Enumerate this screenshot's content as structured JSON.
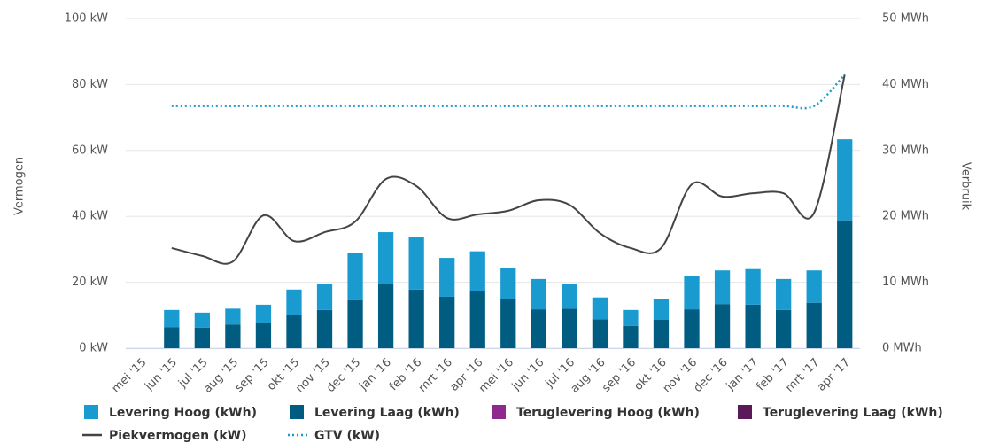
{
  "chart_data": {
    "type": "combo",
    "categories": [
      "mei '15",
      "jun '15",
      "jul '15",
      "aug '15",
      "sep '15",
      "okt '15",
      "nov '15",
      "dec '15",
      "jan '16",
      "feb '16",
      "mrt '16",
      "apr '16",
      "mei '16",
      "jun '16",
      "jul '16",
      "aug '16",
      "sep '16",
      "okt '16",
      "nov '16",
      "dec '16",
      "jan '17",
      "feb '17",
      "mrt '17",
      "apr '17"
    ],
    "ylabel": "Vermogen",
    "y2label": "Verbruik",
    "ylim": [
      0,
      100
    ],
    "yticks": [
      {
        "value": 0,
        "label": "0 kW"
      },
      {
        "value": 20,
        "label": "20 kW"
      },
      {
        "value": 40,
        "label": "40 kW"
      },
      {
        "value": 60,
        "label": "60 kW"
      },
      {
        "value": 80,
        "label": "80 kW"
      },
      {
        "value": 100,
        "label": "100 kW"
      }
    ],
    "y2lim": [
      0,
      50
    ],
    "y2ticks": [
      {
        "value": 0,
        "label": "0 MWh"
      },
      {
        "value": 10,
        "label": "10 MWh"
      },
      {
        "value": 20,
        "label": "20 MWh"
      },
      {
        "value": 30,
        "label": "30 MWh"
      },
      {
        "value": 40,
        "label": "40 MWh"
      },
      {
        "value": 50,
        "label": "50 MWh"
      }
    ],
    "grid": true,
    "series": [
      {
        "name": "Levering Hoog (kWh)",
        "kind": "bar",
        "axis": "y2",
        "color": "#1a9bd0",
        "values": [
          null,
          2.6,
          2.3,
          2.4,
          2.8,
          3.9,
          4.0,
          7.1,
          7.8,
          7.9,
          5.9,
          6.0,
          4.7,
          4.6,
          3.8,
          3.3,
          2.4,
          3.1,
          5.1,
          5.1,
          5.4,
          4.7,
          4.9,
          12.3
        ]
      },
      {
        "name": "Levering Laag (kWh)",
        "kind": "bar",
        "axis": "y2",
        "color": "#005c80",
        "values": [
          null,
          3.2,
          3.1,
          3.6,
          3.8,
          5.0,
          5.8,
          7.3,
          9.8,
          8.9,
          7.8,
          8.7,
          7.5,
          5.9,
          6.0,
          4.4,
          3.4,
          4.3,
          5.9,
          6.7,
          6.6,
          5.8,
          6.9,
          19.4
        ]
      },
      {
        "name": "Teruglevering Hoog (kWh)",
        "kind": "bar",
        "axis": "y2",
        "color": "#8e2a8e",
        "values": [
          null,
          null,
          null,
          null,
          null,
          null,
          null,
          null,
          null,
          null,
          null,
          null,
          null,
          null,
          null,
          null,
          null,
          null,
          null,
          null,
          null,
          null,
          null,
          null
        ]
      },
      {
        "name": "Teruglevering Laag (kWh)",
        "kind": "bar",
        "axis": "y2",
        "color": "#5a1a5a",
        "values": [
          null,
          null,
          null,
          null,
          null,
          null,
          null,
          null,
          null,
          null,
          null,
          null,
          null,
          null,
          null,
          null,
          null,
          null,
          null,
          null,
          null,
          null,
          null,
          null
        ]
      },
      {
        "name": "Piekvermogen (kW)",
        "kind": "line",
        "color": "#434348",
        "values": [
          null,
          30.4,
          28.0,
          26.3,
          40.3,
          32.5,
          35.2,
          38.4,
          51.3,
          49.2,
          39.5,
          40.6,
          41.7,
          44.9,
          43.5,
          34.9,
          30.4,
          30.4,
          49.7,
          46.0,
          47.0,
          47.0,
          41.1,
          83.0
        ]
      },
      {
        "name": "GTV (kW)",
        "kind": "dotted",
        "color": "#1a9bd0",
        "values": [
          null,
          73.5,
          73.5,
          73.5,
          73.5,
          73.5,
          73.5,
          73.5,
          73.5,
          73.5,
          73.5,
          73.5,
          73.5,
          73.5,
          73.5,
          73.5,
          73.5,
          73.5,
          73.5,
          73.5,
          73.5,
          73.5,
          73.5,
          83.0
        ]
      }
    ]
  }
}
